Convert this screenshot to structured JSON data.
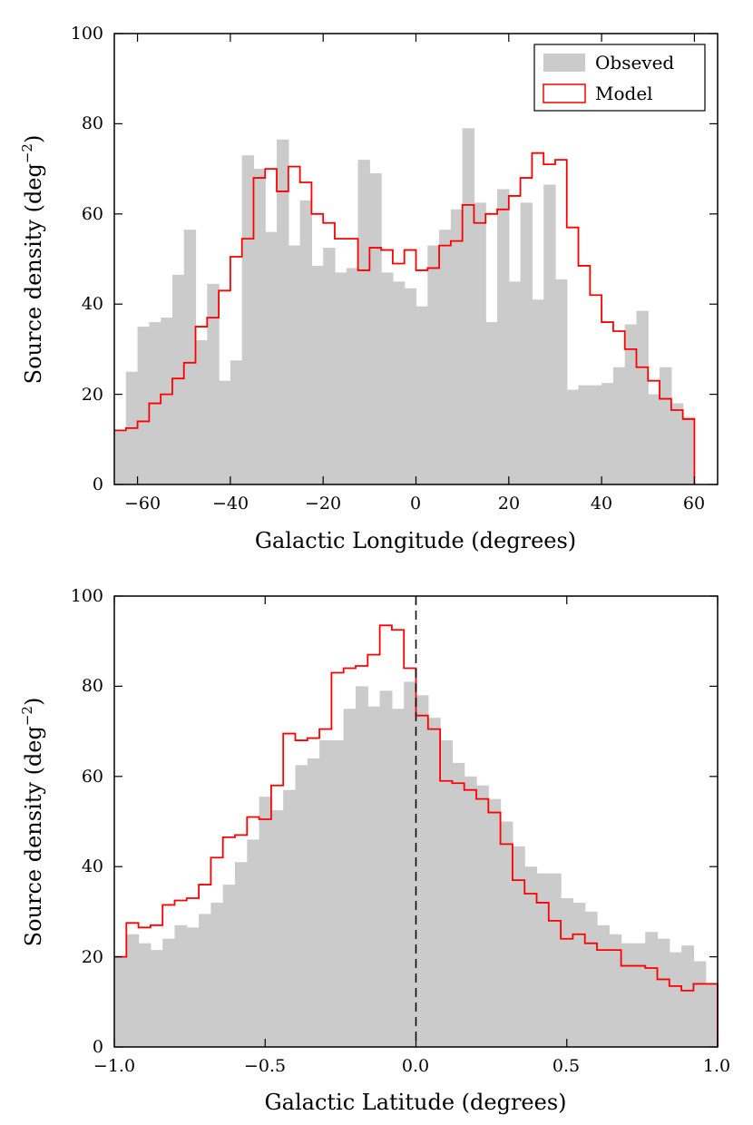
{
  "chart_data": [
    {
      "type": "bar",
      "xlabel": "Galactic Longitude (degrees)",
      "ylabel": "Source density (deg",
      "ylabel_sup": "−2",
      "ylabel_close": ")",
      "xlim": [
        -65,
        65
      ],
      "ylim": [
        0,
        100
      ],
      "xticks": [
        -60,
        -40,
        -20,
        0,
        20,
        40,
        60
      ],
      "xtick_labels": [
        "−60",
        "−40",
        "−20",
        "0",
        "20",
        "40",
        "60"
      ],
      "yticks": [
        0,
        20,
        40,
        60,
        80,
        100
      ],
      "ytick_labels": [
        "0",
        "20",
        "40",
        "60",
        "80",
        "100"
      ],
      "bin_start": -65,
      "bin_width": 2.5,
      "legend": {
        "position": "top-right",
        "observed_label": "Obseved",
        "model_label": "Model"
      },
      "series": [
        {
          "name": "Obseved",
          "color": "#cbcbcb",
          "values": [
            12,
            25,
            35,
            36,
            37,
            46.5,
            56.5,
            32,
            44.5,
            23,
            27.5,
            73,
            70,
            56,
            76.5,
            53,
            63,
            48.5,
            52.5,
            47,
            48,
            72,
            69,
            47,
            45,
            43.5,
            39.5,
            53,
            56.5,
            61,
            79,
            62.5,
            36,
            65.5,
            45,
            62.5,
            41,
            66.5,
            45.5,
            21,
            22,
            22,
            22.5,
            26,
            35.5,
            38.5,
            20,
            26,
            18,
            15
          ]
        },
        {
          "name": "Model",
          "color": "#ff0000",
          "values": [
            12,
            12.5,
            14,
            18,
            20,
            23.5,
            27,
            35,
            37,
            43,
            50.5,
            54.5,
            68,
            70,
            65,
            70.5,
            67,
            60,
            58,
            54.5,
            54.5,
            47.5,
            52.5,
            52,
            49,
            52,
            47.5,
            48,
            53,
            54,
            62,
            58,
            60,
            61,
            64,
            68,
            73.5,
            71,
            72,
            57,
            48.5,
            42,
            36,
            34,
            30,
            26,
            23,
            19,
            16.5,
            14.5
          ]
        }
      ]
    },
    {
      "type": "bar",
      "xlabel": "Galactic Latitude (degrees)",
      "ylabel": "Source density (deg",
      "ylabel_sup": "−2",
      "ylabel_close": ")",
      "xlim": [
        -1.0,
        1.0
      ],
      "ylim": [
        0,
        100
      ],
      "xticks": [
        -1.0,
        -0.5,
        0.0,
        0.5,
        1.0
      ],
      "xtick_labels": [
        "−1.0",
        "−0.5",
        "0.0",
        "0.5",
        "1.0"
      ],
      "yticks": [
        0,
        20,
        40,
        60,
        80,
        100
      ],
      "ytick_labels": [
        "0",
        "20",
        "40",
        "60",
        "80",
        "100"
      ],
      "bin_start": -1.0,
      "bin_width": 0.04,
      "vline_x": 0.0,
      "series": [
        {
          "name": "Obseved",
          "color": "#cbcbcb",
          "values": [
            20,
            25,
            23,
            21.5,
            24,
            27,
            26.5,
            29.5,
            32,
            36,
            41,
            46,
            55.5,
            52.5,
            57,
            62.5,
            64,
            68,
            68,
            75,
            80,
            75.5,
            79,
            75,
            81,
            78,
            73,
            68,
            63,
            60,
            58,
            55,
            50,
            44.5,
            40,
            38.5,
            38.5,
            33,
            32,
            30,
            27,
            25,
            23,
            23,
            25.5,
            24,
            21,
            22.5,
            19,
            14
          ]
        },
        {
          "name": "Model",
          "color": "#ff0000",
          "values": [
            20,
            27.5,
            26.5,
            27,
            31.5,
            32.5,
            33,
            36,
            42,
            46.5,
            47,
            51,
            50.5,
            58,
            69.5,
            68,
            68.5,
            70.5,
            83,
            84,
            84.5,
            87,
            93.5,
            92.5,
            84,
            73.5,
            70.5,
            59,
            58.5,
            57,
            55,
            52,
            45,
            37,
            34,
            32,
            28,
            24,
            25,
            23,
            21.5,
            21.5,
            18,
            18,
            17.5,
            15,
            13.5,
            12.5,
            14,
            14
          ]
        }
      ]
    }
  ]
}
